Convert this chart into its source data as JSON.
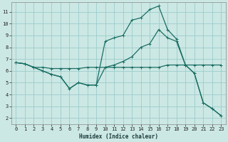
{
  "xlabel": "Humidex (Indice chaleur)",
  "background_color": "#cce8e4",
  "line_color": "#1a6e64",
  "grid_color": "#99cccc",
  "xlim": [
    -0.5,
    23.5
  ],
  "ylim": [
    1.5,
    11.8
  ],
  "xticks": [
    0,
    1,
    2,
    3,
    4,
    5,
    6,
    7,
    8,
    9,
    10,
    11,
    12,
    13,
    14,
    15,
    16,
    17,
    18,
    19,
    20,
    21,
    22,
    23
  ],
  "yticks": [
    2,
    3,
    4,
    5,
    6,
    7,
    8,
    9,
    10,
    11
  ],
  "line1_x": [
    0,
    1,
    2,
    3,
    4,
    5,
    6,
    7,
    8,
    9,
    10,
    11,
    12,
    13,
    14,
    15,
    16,
    17,
    18,
    19,
    20,
    21,
    22,
    23
  ],
  "line1_y": [
    6.7,
    6.6,
    6.3,
    6.3,
    6.2,
    6.2,
    6.2,
    6.2,
    6.3,
    6.3,
    6.3,
    6.3,
    6.3,
    6.3,
    6.3,
    6.3,
    6.3,
    6.5,
    6.5,
    6.5,
    6.5,
    6.5,
    6.5,
    6.5
  ],
  "line2_x": [
    0,
    1,
    2,
    3,
    4,
    5,
    6,
    7,
    8,
    9,
    10,
    11,
    12,
    13,
    14,
    15,
    16,
    17,
    18,
    19,
    20,
    21,
    22,
    23
  ],
  "line2_y": [
    6.7,
    6.6,
    6.3,
    6.0,
    5.7,
    5.5,
    4.5,
    5.0,
    4.8,
    4.8,
    6.3,
    6.5,
    6.8,
    7.2,
    8.0,
    8.3,
    9.5,
    8.8,
    8.5,
    6.5,
    5.8,
    3.3,
    2.8,
    2.2
  ],
  "line3_x": [
    0,
    1,
    2,
    3,
    4,
    5,
    6,
    7,
    8,
    9,
    10,
    11,
    12,
    13,
    14,
    15,
    16,
    17,
    18,
    19,
    20,
    21,
    22,
    23
  ],
  "line3_y": [
    6.7,
    6.6,
    6.3,
    6.0,
    5.7,
    5.5,
    4.5,
    5.0,
    4.8,
    4.8,
    8.5,
    8.8,
    9.0,
    10.3,
    10.5,
    11.2,
    11.5,
    9.5,
    8.7,
    6.5,
    5.8,
    3.3,
    2.8,
    2.2
  ]
}
